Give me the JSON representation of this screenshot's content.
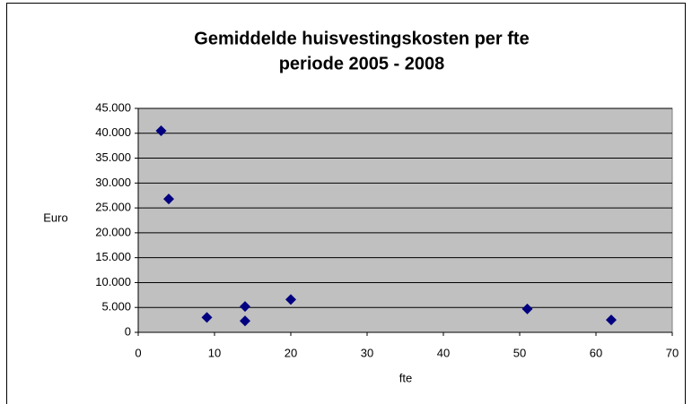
{
  "chart_data": {
    "type": "scatter",
    "title": "Gemiddelde huisvestingskosten per fte",
    "subtitle": "periode 2005 - 2008",
    "x_label": "fte",
    "y_label": "Euro",
    "x": [
      3,
      4,
      9,
      14,
      14,
      20,
      51,
      62
    ],
    "values": [
      40500,
      26800,
      3000,
      5200,
      2300,
      6600,
      4700,
      2500
    ],
    "color": "#000080",
    "xlim": [
      0,
      70
    ],
    "xticks": [
      0,
      10,
      20,
      30,
      40,
      50,
      60,
      70
    ],
    "ylim": [
      0,
      45000
    ],
    "yticks": [
      0,
      {
        "value": 5000,
        "label": "5.000"
      },
      {
        "value": 10000,
        "label": "10.000"
      },
      {
        "value": 15000,
        "label": "15.000"
      },
      {
        "value": 20000,
        "label": "20.000"
      },
      {
        "value": 25000,
        "label": "25.000"
      },
      {
        "value": 30000,
        "label": "30.000"
      },
      {
        "value": 35000,
        "label": "35.000"
      },
      {
        "value": 40000,
        "label": "40.000"
      },
      {
        "value": 45000,
        "label": "45.000"
      }
    ],
    "grid": true
  }
}
